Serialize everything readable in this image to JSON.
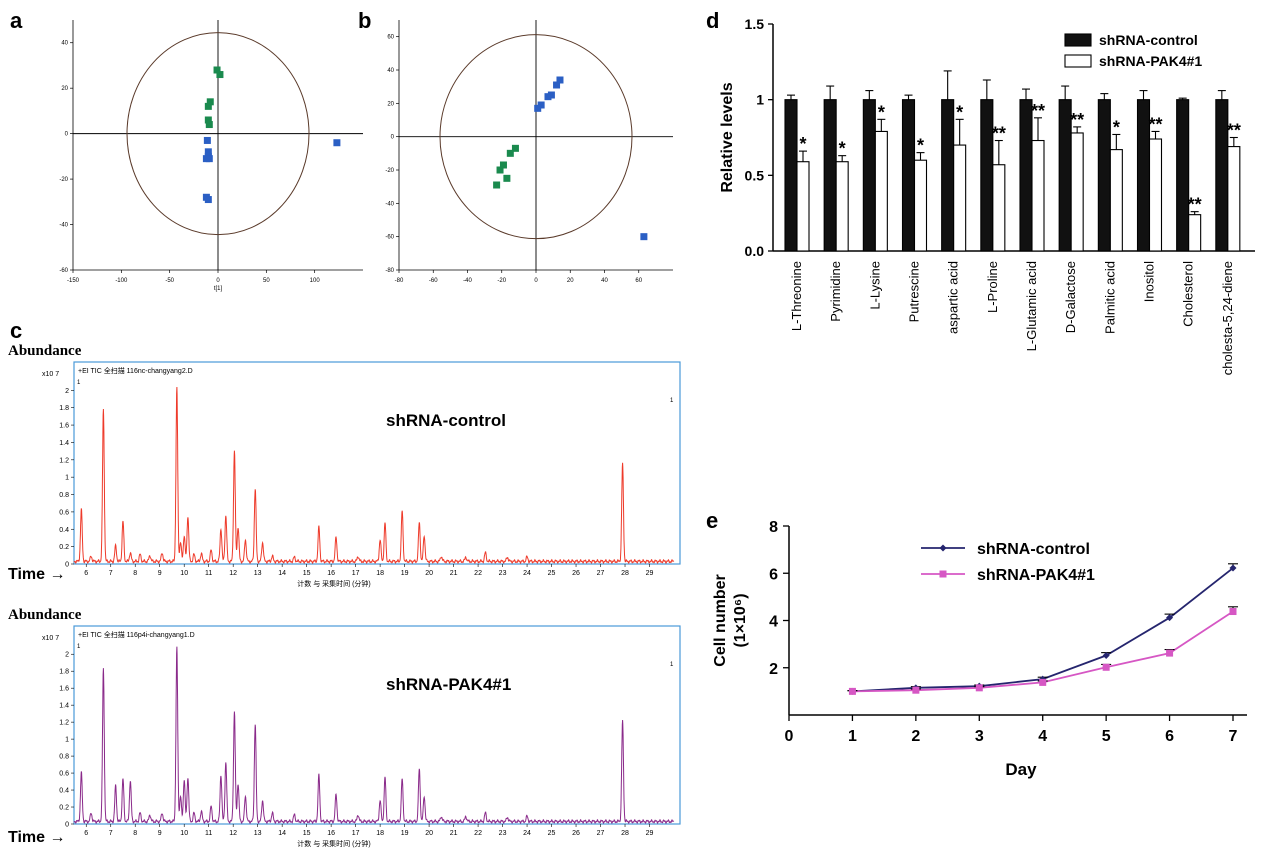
{
  "panel_labels": {
    "a": "a",
    "b": "b",
    "c": "c",
    "d": "d",
    "e": "e"
  },
  "colors": {
    "green": "#1a8a4e",
    "blue": "#2b5fc4",
    "red_trace": "#ee3a2a",
    "purple_trace": "#8a2a8a",
    "chrom_frame": "#4a9ad8",
    "e_control": "#25256e",
    "e_pak4": "#d657c4"
  },
  "chart_data": [
    {
      "id": "a",
      "type": "scatter",
      "xlabel": "t[1]",
      "ylabel": "",
      "xlim": [
        -150,
        150
      ],
      "ylim": [
        -60,
        50
      ],
      "xticks": [
        "-150",
        "-100",
        "-50",
        "0",
        "50",
        "100"
      ],
      "yticks": [
        "-60",
        "-40",
        "-20",
        "0",
        "20",
        "40"
      ],
      "series": [
        {
          "color": "green",
          "points": [
            [
              -1,
              28
            ],
            [
              2,
              26
            ],
            [
              -8,
              14
            ],
            [
              -10,
              12
            ],
            [
              -10,
              6
            ],
            [
              -9,
              4
            ]
          ]
        },
        {
          "color": "blue",
          "points": [
            [
              -11,
              -3
            ],
            [
              -10,
              -8
            ],
            [
              -10,
              -10
            ],
            [
              -12,
              -11
            ],
            [
              -9,
              -11
            ],
            [
              -12,
              -28
            ],
            [
              -10,
              -29
            ],
            [
              123,
              -4
            ]
          ]
        }
      ]
    },
    {
      "id": "b",
      "type": "scatter",
      "xlabel": "",
      "ylabel": "",
      "xlim": [
        -80,
        80
      ],
      "ylim": [
        -80,
        70
      ],
      "xticks": [
        "-80",
        "-60",
        "-40",
        "-20",
        "0",
        "20",
        "40",
        "60"
      ],
      "yticks": [
        "-80",
        "-60",
        "-40",
        "-20",
        "0",
        "20",
        "40",
        "60"
      ],
      "series": [
        {
          "color": "green",
          "points": [
            [
              -12,
              -7
            ],
            [
              -15,
              -10
            ],
            [
              -19,
              -17
            ],
            [
              -21,
              -20
            ],
            [
              -17,
              -25
            ],
            [
              -23,
              -29
            ]
          ]
        },
        {
          "color": "blue",
          "points": [
            [
              14,
              34
            ],
            [
              12,
              31
            ],
            [
              9,
              25
            ],
            [
              7,
              24
            ],
            [
              3,
              19
            ],
            [
              1,
              17
            ],
            [
              63,
              -60
            ]
          ]
        }
      ]
    },
    {
      "id": "c1",
      "type": "line",
      "title": "shRNA-control",
      "header": "+EI TIC 全扫描 116nc-changyang2.D",
      "scale": "x10 7",
      "xlabel": "计数 与 采集时间 (分钟)",
      "ylabel": "Abundance",
      "xlim": [
        5.5,
        30
      ],
      "ylim": [
        0,
        2.05
      ],
      "xticks": [
        "6",
        "7",
        "8",
        "9",
        "10",
        "11",
        "12",
        "13",
        "14",
        "15",
        "16",
        "17",
        "18",
        "19",
        "20",
        "21",
        "22",
        "23",
        "24",
        "25",
        "26",
        "27",
        "28",
        "29"
      ],
      "yticks": [
        "0",
        "0.2",
        "0.4",
        "0.6",
        "0.8",
        "1",
        "1.2",
        "1.4",
        "1.6",
        "1.8",
        "2"
      ],
      "corner_mark": "1",
      "peaks": [
        [
          5.8,
          0.6
        ],
        [
          6.2,
          0.06
        ],
        [
          6.7,
          1.75
        ],
        [
          7.2,
          0.18
        ],
        [
          7.5,
          0.46
        ],
        [
          7.8,
          0.1
        ],
        [
          8.2,
          0.08
        ],
        [
          8.6,
          0.07
        ],
        [
          9.1,
          0.1
        ],
        [
          9.7,
          2.0
        ],
        [
          9.85,
          0.22
        ],
        [
          10.0,
          0.3
        ],
        [
          10.15,
          0.52
        ],
        [
          10.4,
          0.08
        ],
        [
          10.7,
          0.09
        ],
        [
          11.1,
          0.13
        ],
        [
          11.5,
          0.38
        ],
        [
          11.7,
          0.53
        ],
        [
          12.05,
          1.28
        ],
        [
          12.2,
          0.4
        ],
        [
          12.5,
          0.25
        ],
        [
          12.9,
          0.84
        ],
        [
          13.2,
          0.22
        ],
        [
          13.6,
          0.06
        ],
        [
          14.5,
          0.05
        ],
        [
          15.5,
          0.4
        ],
        [
          16.2,
          0.28
        ],
        [
          17.1,
          0.06
        ],
        [
          18.0,
          0.25
        ],
        [
          18.2,
          0.44
        ],
        [
          18.9,
          0.58
        ],
        [
          19.6,
          0.45
        ],
        [
          19.8,
          0.3
        ],
        [
          20.5,
          0.06
        ],
        [
          21.5,
          0.05
        ],
        [
          22.3,
          0.1
        ],
        [
          23.2,
          0.05
        ],
        [
          24.0,
          0.05
        ],
        [
          27.9,
          1.12
        ]
      ]
    },
    {
      "id": "c2",
      "type": "line",
      "title": "shRNA-PAK4#1",
      "header": "+EI TIC 全扫描 116p4i-changyang1.D",
      "scale": "x10 7",
      "xlabel": "计数 与 采集时间 (分钟)",
      "ylabel": "Abundance",
      "xlim": [
        5.5,
        30
      ],
      "ylim": [
        0,
        2.05
      ],
      "xticks": [
        "6",
        "7",
        "8",
        "9",
        "10",
        "11",
        "12",
        "13",
        "14",
        "15",
        "16",
        "17",
        "18",
        "19",
        "20",
        "21",
        "22",
        "23",
        "24",
        "25",
        "26",
        "27",
        "28",
        "29"
      ],
      "yticks": [
        "0",
        "0.2",
        "0.4",
        "0.6",
        "0.8",
        "1",
        "1.2",
        "1.4",
        "1.6",
        "1.8",
        "2"
      ],
      "corner_mark": "1",
      "peaks": [
        [
          5.8,
          0.58
        ],
        [
          6.2,
          0.1
        ],
        [
          6.7,
          1.8
        ],
        [
          7.2,
          0.42
        ],
        [
          7.5,
          0.5
        ],
        [
          7.8,
          0.48
        ],
        [
          8.2,
          0.1
        ],
        [
          8.6,
          0.08
        ],
        [
          9.1,
          0.1
        ],
        [
          9.7,
          2.05
        ],
        [
          9.85,
          0.3
        ],
        [
          10.0,
          0.5
        ],
        [
          10.15,
          0.52
        ],
        [
          10.4,
          0.1
        ],
        [
          10.7,
          0.12
        ],
        [
          11.1,
          0.18
        ],
        [
          11.5,
          0.55
        ],
        [
          11.7,
          0.7
        ],
        [
          12.05,
          1.3
        ],
        [
          12.2,
          0.45
        ],
        [
          12.5,
          0.3
        ],
        [
          12.9,
          1.15
        ],
        [
          13.2,
          0.25
        ],
        [
          13.6,
          0.1
        ],
        [
          14.5,
          0.08
        ],
        [
          15.5,
          0.55
        ],
        [
          16.2,
          0.32
        ],
        [
          17.1,
          0.08
        ],
        [
          18.0,
          0.25
        ],
        [
          18.2,
          0.52
        ],
        [
          18.9,
          0.5
        ],
        [
          19.6,
          0.62
        ],
        [
          19.8,
          0.3
        ],
        [
          20.5,
          0.06
        ],
        [
          21.5,
          0.06
        ],
        [
          22.3,
          0.1
        ],
        [
          23.2,
          0.05
        ],
        [
          24.0,
          0.06
        ],
        [
          27.9,
          1.18
        ]
      ]
    },
    {
      "id": "d",
      "type": "bar",
      "ylabel": "Relative levels",
      "ylim": [
        0,
        1.5
      ],
      "yticks": [
        "0.0",
        "0.5",
        "1",
        "1.5"
      ],
      "legend_position": "top-right",
      "categories": [
        "L-Threonine",
        "Pyrimidine",
        "L-Lysine",
        "Putrescine",
        "aspartic acid",
        "L-Proline",
        "L-Glutamic acid",
        "D-Galactose",
        "Palmitic acid",
        "Inositol",
        "Cholesterol",
        "cholesta-5,24-diene"
      ],
      "series": [
        {
          "name": "shRNA-control",
          "fill": "#111111",
          "values": [
            1.0,
            1.0,
            1.0,
            1.0,
            1.0,
            1.0,
            1.0,
            1.0,
            1.0,
            1.0,
            1.0,
            1.0
          ],
          "errors": [
            0.03,
            0.09,
            0.06,
            0.03,
            0.19,
            0.13,
            0.07,
            0.09,
            0.04,
            0.06,
            0.01,
            0.06
          ]
        },
        {
          "name": "shRNA-PAK4#1",
          "fill": "#ffffff",
          "values": [
            0.59,
            0.59,
            0.79,
            0.6,
            0.7,
            0.57,
            0.73,
            0.78,
            0.67,
            0.74,
            0.24,
            0.69
          ],
          "errors": [
            0.07,
            0.04,
            0.08,
            0.05,
            0.17,
            0.16,
            0.15,
            0.04,
            0.1,
            0.05,
            0.02,
            0.06
          ]
        }
      ],
      "significance": [
        "*",
        "*",
        "*",
        "*",
        "*",
        "**",
        "**",
        "**",
        "*",
        "**",
        "**",
        "**"
      ]
    },
    {
      "id": "e",
      "type": "line",
      "xlabel": "Day",
      "ylabel": "Cell number",
      "yunit": "(1×10⁶)",
      "xlim": [
        0,
        7
      ],
      "ylim": [
        0,
        8
      ],
      "xticks": [
        "0",
        "1",
        "2",
        "3",
        "4",
        "5",
        "6",
        "7"
      ],
      "yticks": [
        "2",
        "4",
        "6",
        "8"
      ],
      "legend_position": "top-left",
      "x": [
        1,
        2,
        3,
        4,
        5,
        6,
        7
      ],
      "series": [
        {
          "name": "shRNA-control",
          "values": [
            1.0,
            1.15,
            1.22,
            1.52,
            2.52,
            4.12,
            6.22
          ],
          "errors": [
            0.03,
            0.05,
            0.05,
            0.08,
            0.12,
            0.15,
            0.18
          ]
        },
        {
          "name": "shRNA-PAK4#1",
          "values": [
            1.0,
            1.05,
            1.15,
            1.38,
            2.02,
            2.62,
            4.38
          ],
          "errors": [
            0.03,
            0.05,
            0.05,
            0.06,
            0.12,
            0.15,
            0.2
          ]
        }
      ]
    }
  ]
}
